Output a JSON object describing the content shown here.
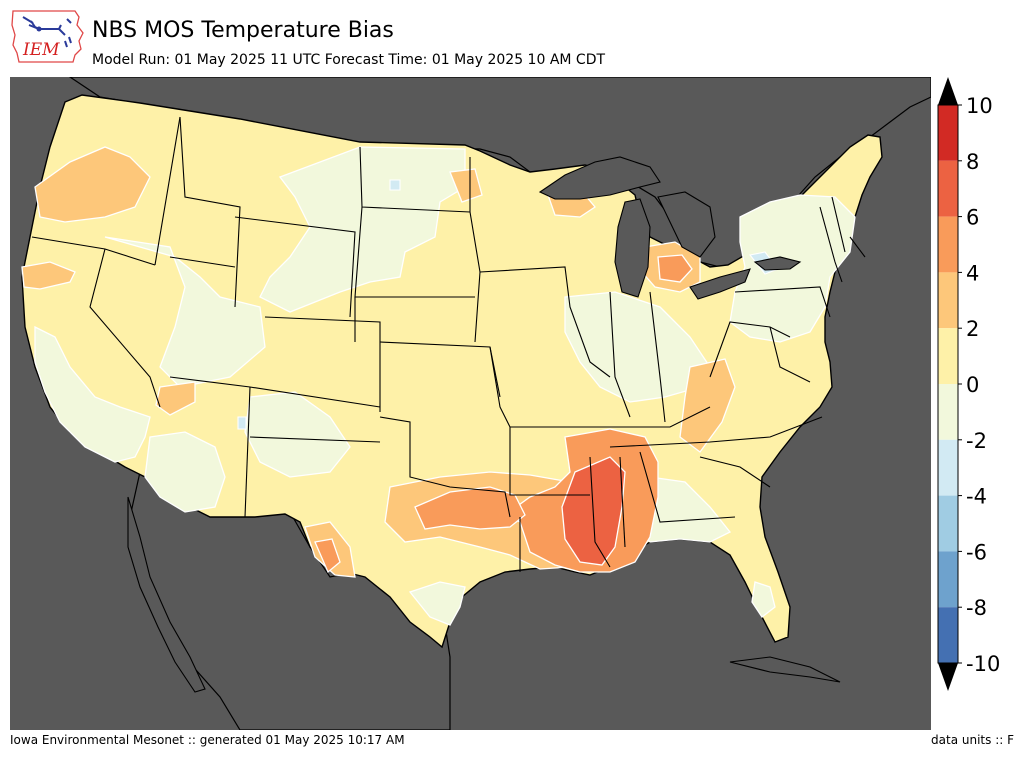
{
  "header": {
    "logo_text": "IEM",
    "title": "NBS MOS Temperature Bias",
    "subtitle": "Model Run: 01 May 2025 11 UTC Forecast Time: 01 May 2025 10 AM CDT"
  },
  "map": {
    "region": "Contiguous United States",
    "ocean_color": "#595959",
    "field": "NBS MOS Temperature Bias",
    "regions": [
      {
        "name": "default-land",
        "bias_bin": "0 to 2",
        "color": "#fef1a8"
      },
      {
        "name": "northern-plains",
        "bias_bin": "-2 to 0",
        "color": "#f2f8dc"
      },
      {
        "name": "great-basin",
        "bias_bin": "-2 to 0",
        "color": "#f2f8dc"
      },
      {
        "name": "california-coast",
        "bias_bin": "-2 to 0",
        "color": "#f2f8dc"
      },
      {
        "name": "southwest-desert",
        "bias_bin": "-2 to 0",
        "color": "#f2f8dc"
      },
      {
        "name": "new-mexico",
        "bias_bin": "-2 to 0",
        "color": "#f2f8dc"
      },
      {
        "name": "ohio-valley",
        "bias_bin": "-2 to 0",
        "color": "#f2f8dc"
      },
      {
        "name": "northeast",
        "bias_bin": "-2 to 0",
        "color": "#f2f8dc"
      },
      {
        "name": "gulf-coast-east",
        "bias_bin": "-2 to 0",
        "color": "#f2f8dc"
      },
      {
        "name": "pacific-northwest",
        "bias_bin": "2 to 4",
        "color": "#fdc77a"
      },
      {
        "name": "central-texas",
        "bias_bin": "2 to 4",
        "color": "#fdc77a"
      },
      {
        "name": "lower-michigan",
        "bias_bin": "2 to 4",
        "color": "#fdc77a"
      },
      {
        "name": "kentucky",
        "bias_bin": "2 to 4",
        "color": "#fdc77a"
      },
      {
        "name": "mississippi-valley",
        "bias_bin": "4 to 6",
        "color": "#f99b5a"
      },
      {
        "name": "central-mississippi",
        "bias_bin": "6 to 8",
        "color": "#ec6242"
      },
      {
        "name": "lake-erie-area",
        "bias_bin": "-4 to -2",
        "color": "#d2eaf3"
      }
    ]
  },
  "colorbar": {
    "ticks": [
      "10",
      "8",
      "6",
      "4",
      "2",
      "0",
      "-2",
      "-4",
      "-6",
      "-8",
      "-10"
    ],
    "levels": [
      {
        "from": 8,
        "to": 10,
        "color": "#d22a24"
      },
      {
        "from": 6,
        "to": 8,
        "color": "#ec6242"
      },
      {
        "from": 4,
        "to": 6,
        "color": "#f99b5a"
      },
      {
        "from": 2,
        "to": 4,
        "color": "#fdc77a"
      },
      {
        "from": 0,
        "to": 2,
        "color": "#fef1a8"
      },
      {
        "from": -2,
        "to": 0,
        "color": "#f2f8dc"
      },
      {
        "from": -4,
        "to": -2,
        "color": "#d2eaf3"
      },
      {
        "from": -6,
        "to": -4,
        "color": "#a0cce3"
      },
      {
        "from": -8,
        "to": -6,
        "color": "#6ea2cd"
      },
      {
        "from": -10,
        "to": -8,
        "color": "#4470b2"
      }
    ],
    "over_color": "#000000",
    "under_color": "#000000"
  },
  "footer": {
    "left": "Iowa Environmental Mesonet :: generated 01 May 2025 10:17 AM",
    "right": "data units :: F"
  }
}
